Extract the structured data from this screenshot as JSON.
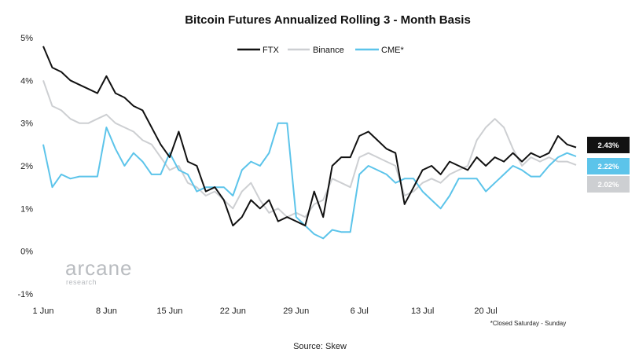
{
  "chart_data": {
    "type": "line",
    "title": "Bitcoin Futures Annualized Rolling 3  - Month Basis",
    "y_unit": "%",
    "ylim": [
      -1,
      5
    ],
    "xlim": [
      "2020-06-01",
      "2020-07-30"
    ],
    "y_ticks": [
      -1,
      0,
      1,
      2,
      3,
      4,
      5
    ],
    "y_tick_labels": [
      "-1%",
      "0%",
      "1%",
      "2%",
      "3%",
      "4%",
      "5%"
    ],
    "x_ticks": [
      "2020-06-01",
      "2020-06-08",
      "2020-06-15",
      "2020-06-22",
      "2020-06-29",
      "2020-07-06",
      "2020-07-13",
      "2020-07-20"
    ],
    "x_tick_labels": [
      "1 Jun",
      "8 Jun",
      "15 Jun",
      "22 Jun",
      "29 Jun",
      "6 Jul",
      "13 Jul",
      "20 Jul"
    ],
    "grid": false,
    "legend_position": "top-center",
    "series": [
      {
        "name": "FTX",
        "color": "#111111",
        "last_value_label": "2.43%",
        "points": [
          [
            "2020-06-01",
            4.8
          ],
          [
            "2020-06-02",
            4.3
          ],
          [
            "2020-06-03",
            4.2
          ],
          [
            "2020-06-04",
            4.0
          ],
          [
            "2020-06-05",
            3.9
          ],
          [
            "2020-06-06",
            3.8
          ],
          [
            "2020-06-07",
            3.7
          ],
          [
            "2020-06-08",
            4.1
          ],
          [
            "2020-06-09",
            3.7
          ],
          [
            "2020-06-10",
            3.6
          ],
          [
            "2020-06-11",
            3.4
          ],
          [
            "2020-06-12",
            3.3
          ],
          [
            "2020-06-13",
            2.9
          ],
          [
            "2020-06-14",
            2.5
          ],
          [
            "2020-06-15",
            2.2
          ],
          [
            "2020-06-16",
            2.8
          ],
          [
            "2020-06-17",
            2.1
          ],
          [
            "2020-06-18",
            2.0
          ],
          [
            "2020-06-19",
            1.4
          ],
          [
            "2020-06-20",
            1.5
          ],
          [
            "2020-06-21",
            1.2
          ],
          [
            "2020-06-22",
            0.6
          ],
          [
            "2020-06-23",
            0.8
          ],
          [
            "2020-06-24",
            1.2
          ],
          [
            "2020-06-25",
            1.0
          ],
          [
            "2020-06-26",
            1.2
          ],
          [
            "2020-06-27",
            0.7
          ],
          [
            "2020-06-28",
            0.8
          ],
          [
            "2020-06-29",
            0.7
          ],
          [
            "2020-06-30",
            0.6
          ],
          [
            "2020-07-01",
            1.4
          ],
          [
            "2020-07-02",
            0.8
          ],
          [
            "2020-07-03",
            2.0
          ],
          [
            "2020-07-04",
            2.2
          ],
          [
            "2020-07-05",
            2.2
          ],
          [
            "2020-07-06",
            2.7
          ],
          [
            "2020-07-07",
            2.8
          ],
          [
            "2020-07-08",
            2.6
          ],
          [
            "2020-07-09",
            2.4
          ],
          [
            "2020-07-10",
            2.3
          ],
          [
            "2020-07-11",
            1.1
          ],
          [
            "2020-07-12",
            1.5
          ],
          [
            "2020-07-13",
            1.9
          ],
          [
            "2020-07-14",
            2.0
          ],
          [
            "2020-07-15",
            1.8
          ],
          [
            "2020-07-16",
            2.1
          ],
          [
            "2020-07-17",
            2.0
          ],
          [
            "2020-07-18",
            1.9
          ],
          [
            "2020-07-19",
            2.2
          ],
          [
            "2020-07-20",
            2.0
          ],
          [
            "2020-07-21",
            2.2
          ],
          [
            "2020-07-22",
            2.1
          ],
          [
            "2020-07-23",
            2.3
          ],
          [
            "2020-07-24",
            2.1
          ],
          [
            "2020-07-25",
            2.3
          ],
          [
            "2020-07-26",
            2.2
          ],
          [
            "2020-07-27",
            2.3
          ],
          [
            "2020-07-28",
            2.7
          ],
          [
            "2020-07-29",
            2.5
          ],
          [
            "2020-07-30",
            2.43
          ]
        ]
      },
      {
        "name": "Binance",
        "color": "#cdcfd2",
        "last_value_label": "2.02%",
        "points": [
          [
            "2020-06-01",
            4.0
          ],
          [
            "2020-06-02",
            3.4
          ],
          [
            "2020-06-03",
            3.3
          ],
          [
            "2020-06-04",
            3.1
          ],
          [
            "2020-06-05",
            3.0
          ],
          [
            "2020-06-06",
            3.0
          ],
          [
            "2020-06-07",
            3.1
          ],
          [
            "2020-06-08",
            3.2
          ],
          [
            "2020-06-09",
            3.0
          ],
          [
            "2020-06-10",
            2.9
          ],
          [
            "2020-06-11",
            2.8
          ],
          [
            "2020-06-12",
            2.6
          ],
          [
            "2020-06-13",
            2.5
          ],
          [
            "2020-06-14",
            2.2
          ],
          [
            "2020-06-15",
            1.9
          ],
          [
            "2020-06-16",
            2.0
          ],
          [
            "2020-06-17",
            1.6
          ],
          [
            "2020-06-18",
            1.5
          ],
          [
            "2020-06-19",
            1.3
          ],
          [
            "2020-06-20",
            1.4
          ],
          [
            "2020-06-21",
            1.2
          ],
          [
            "2020-06-22",
            1.0
          ],
          [
            "2020-06-23",
            1.4
          ],
          [
            "2020-06-24",
            1.6
          ],
          [
            "2020-06-25",
            1.2
          ],
          [
            "2020-06-26",
            0.9
          ],
          [
            "2020-06-27",
            1.0
          ],
          [
            "2020-06-28",
            0.8
          ],
          [
            "2020-06-29",
            0.9
          ],
          [
            "2020-06-30",
            0.8
          ],
          [
            "2020-07-01",
            1.1
          ],
          [
            "2020-07-02",
            1.2
          ],
          [
            "2020-07-03",
            1.7
          ],
          [
            "2020-07-04",
            1.6
          ],
          [
            "2020-07-05",
            1.5
          ],
          [
            "2020-07-06",
            2.2
          ],
          [
            "2020-07-07",
            2.3
          ],
          [
            "2020-07-08",
            2.2
          ],
          [
            "2020-07-09",
            2.1
          ],
          [
            "2020-07-10",
            2.0
          ],
          [
            "2020-07-11",
            1.3
          ],
          [
            "2020-07-12",
            1.4
          ],
          [
            "2020-07-13",
            1.6
          ],
          [
            "2020-07-14",
            1.7
          ],
          [
            "2020-07-15",
            1.6
          ],
          [
            "2020-07-16",
            1.8
          ],
          [
            "2020-07-17",
            1.9
          ],
          [
            "2020-07-18",
            2.0
          ],
          [
            "2020-07-19",
            2.6
          ],
          [
            "2020-07-20",
            2.9
          ],
          [
            "2020-07-21",
            3.1
          ],
          [
            "2020-07-22",
            2.9
          ],
          [
            "2020-07-23",
            2.4
          ],
          [
            "2020-07-24",
            2.0
          ],
          [
            "2020-07-25",
            2.2
          ],
          [
            "2020-07-26",
            2.1
          ],
          [
            "2020-07-27",
            2.2
          ],
          [
            "2020-07-28",
            2.1
          ],
          [
            "2020-07-29",
            2.1
          ],
          [
            "2020-07-30",
            2.02
          ]
        ]
      },
      {
        "name": "CME*",
        "color": "#5cc4ea",
        "last_value_label": "2.22%",
        "points": [
          [
            "2020-06-01",
            2.5
          ],
          [
            "2020-06-02",
            1.5
          ],
          [
            "2020-06-03",
            1.8
          ],
          [
            "2020-06-04",
            1.7
          ],
          [
            "2020-06-05",
            1.75
          ],
          [
            "2020-06-06",
            1.75
          ],
          [
            "2020-06-07",
            1.75
          ],
          [
            "2020-06-08",
            2.9
          ],
          [
            "2020-06-09",
            2.4
          ],
          [
            "2020-06-10",
            2.0
          ],
          [
            "2020-06-11",
            2.3
          ],
          [
            "2020-06-12",
            2.1
          ],
          [
            "2020-06-13",
            1.8
          ],
          [
            "2020-06-14",
            1.8
          ],
          [
            "2020-06-15",
            2.3
          ],
          [
            "2020-06-16",
            1.9
          ],
          [
            "2020-06-17",
            1.8
          ],
          [
            "2020-06-18",
            1.4
          ],
          [
            "2020-06-19",
            1.5
          ],
          [
            "2020-06-20",
            1.5
          ],
          [
            "2020-06-21",
            1.5
          ],
          [
            "2020-06-22",
            1.3
          ],
          [
            "2020-06-23",
            1.9
          ],
          [
            "2020-06-24",
            2.1
          ],
          [
            "2020-06-25",
            2.0
          ],
          [
            "2020-06-26",
            2.3
          ],
          [
            "2020-06-27",
            3.0
          ],
          [
            "2020-06-28",
            3.0
          ],
          [
            "2020-06-29",
            0.8
          ],
          [
            "2020-06-30",
            0.6
          ],
          [
            "2020-07-01",
            0.4
          ],
          [
            "2020-07-02",
            0.3
          ],
          [
            "2020-07-03",
            0.5
          ],
          [
            "2020-07-04",
            0.45
          ],
          [
            "2020-07-05",
            0.45
          ],
          [
            "2020-07-06",
            1.8
          ],
          [
            "2020-07-07",
            2.0
          ],
          [
            "2020-07-08",
            1.9
          ],
          [
            "2020-07-09",
            1.8
          ],
          [
            "2020-07-10",
            1.6
          ],
          [
            "2020-07-11",
            1.7
          ],
          [
            "2020-07-12",
            1.7
          ],
          [
            "2020-07-13",
            1.4
          ],
          [
            "2020-07-14",
            1.2
          ],
          [
            "2020-07-15",
            1.0
          ],
          [
            "2020-07-16",
            1.3
          ],
          [
            "2020-07-17",
            1.7
          ],
          [
            "2020-07-18",
            1.7
          ],
          [
            "2020-07-19",
            1.7
          ],
          [
            "2020-07-20",
            1.4
          ],
          [
            "2020-07-21",
            1.6
          ],
          [
            "2020-07-22",
            1.8
          ],
          [
            "2020-07-23",
            2.0
          ],
          [
            "2020-07-24",
            1.9
          ],
          [
            "2020-07-25",
            1.75
          ],
          [
            "2020-07-26",
            1.75
          ],
          [
            "2020-07-27",
            2.0
          ],
          [
            "2020-07-28",
            2.2
          ],
          [
            "2020-07-29",
            2.3
          ],
          [
            "2020-07-30",
            2.22
          ]
        ]
      }
    ],
    "footnote": "*Closed Saturday - Sunday",
    "source": "Source: Skew",
    "watermark": {
      "main": "arcane",
      "sub": "research"
    }
  }
}
